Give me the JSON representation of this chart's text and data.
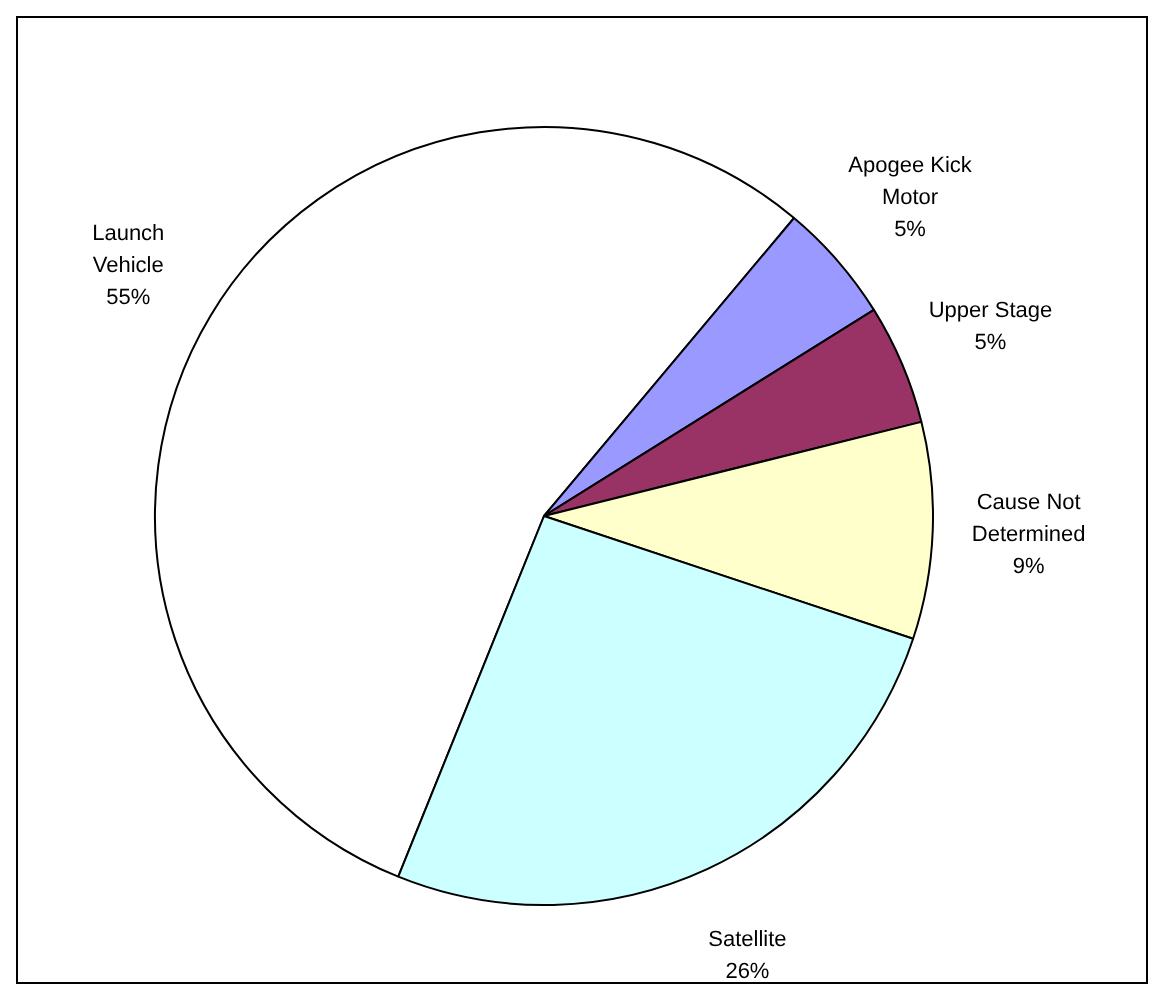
{
  "chart_data": {
    "type": "pie",
    "categories": [
      "Launch Vehicle",
      "Apogee Kick Motor",
      "Upper Stage",
      "Cause Not Determined",
      "Satellite"
    ],
    "values": [
      55,
      5,
      5,
      9,
      26
    ],
    "value_labels": [
      "55%",
      "5%",
      "5%",
      "9%",
      "26%"
    ],
    "colors": [
      "#ffffff",
      "#9999ff",
      "#993366",
      "#ffffcc",
      "#ccffff"
    ],
    "legend": false
  }
}
